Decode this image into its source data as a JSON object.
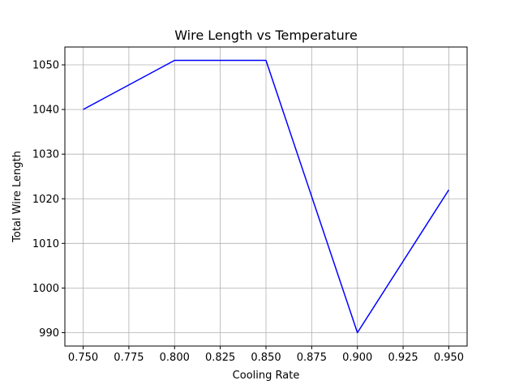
{
  "chart_data": {
    "type": "line",
    "title": "Wire Length vs Temperature",
    "xlabel": "Cooling Rate",
    "ylabel": "Total Wire Length",
    "x": [
      0.75,
      0.8,
      0.85,
      0.9,
      0.95
    ],
    "series": [
      {
        "values": [
          1040,
          1051,
          1051,
          990,
          1022
        ],
        "color": "#0000ff"
      }
    ],
    "xlim": [
      0.74,
      0.96
    ],
    "ylim": [
      987,
      1054
    ],
    "x_ticks": [
      "0.750",
      "0.775",
      "0.800",
      "0.825",
      "0.850",
      "0.875",
      "0.900",
      "0.925",
      "0.950"
    ],
    "x_tick_values": [
      0.75,
      0.775,
      0.8,
      0.825,
      0.85,
      0.875,
      0.9,
      0.925,
      0.95
    ],
    "y_ticks": [
      "990",
      "1000",
      "1010",
      "1020",
      "1030",
      "1040",
      "1050"
    ],
    "y_tick_values": [
      990,
      1000,
      1010,
      1020,
      1030,
      1040,
      1050
    ],
    "grid": true,
    "legend": "none"
  }
}
